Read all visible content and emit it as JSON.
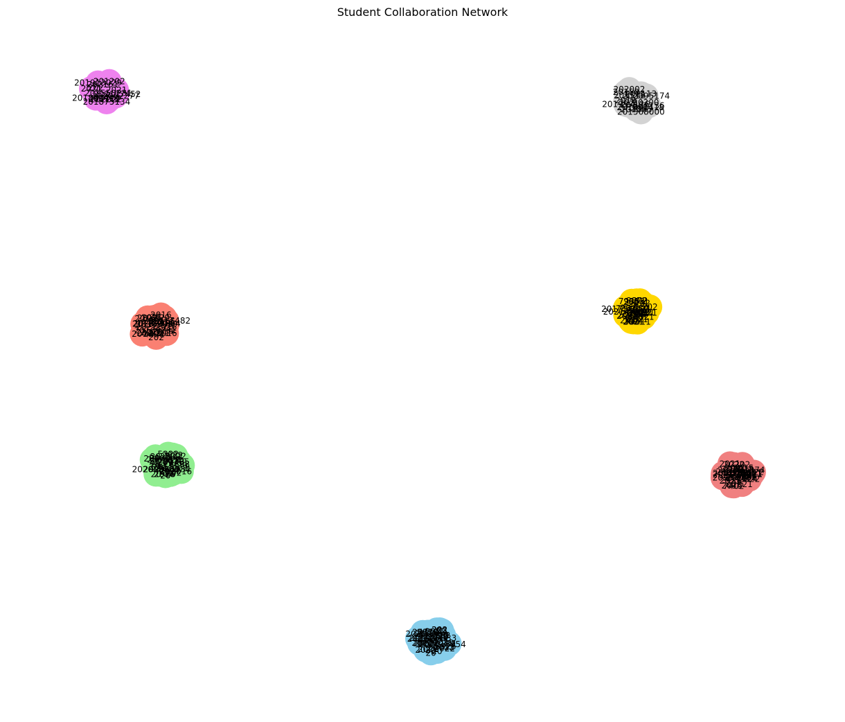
{
  "title": "Student Collaboration Network",
  "clusters": [
    {
      "id": "violet",
      "color": "#ee82ee",
      "nodes": [
        "201875134",
        "201913029",
        "202062277",
        "201772",
        "202161",
        "202177452",
        "201202",
        "2021",
        "2021",
        "202222",
        "202",
        "201550231",
        "202",
        "201850713"
      ]
    },
    {
      "id": "lightgray",
      "color": "#d3d3d3",
      "nodes": [
        "202002",
        "202095174",
        "201865",
        "202",
        "201",
        "202136",
        "201957126",
        "2019",
        "20200",
        "202113",
        "205",
        "201516",
        "20150",
        "201568000",
        "201802418"
      ]
    },
    {
      "id": "salmon",
      "color": "#fa8072",
      "nodes": [
        "202117482",
        "2021",
        "2021",
        "2021",
        "20165",
        "2016",
        "2019",
        "4422",
        "2019",
        "2016",
        "2016",
        "2017",
        "20169701",
        "2016",
        "2016",
        "20161",
        "2016",
        "2016",
        "202",
        "20",
        "202",
        "202",
        "20",
        "2016803",
        "202229604"
      ]
    },
    {
      "id": "gold",
      "color": "#ffd700",
      "nodes": [
        "201754057",
        "2019",
        "2019",
        "202",
        "7837",
        "2021",
        "2021",
        "2021",
        "2021",
        "202",
        "20",
        "202",
        "8872",
        "2021",
        "2021",
        "2021",
        "2021",
        "202",
        "202",
        "75411",
        "2021",
        "2021",
        "2021",
        "2021",
        "202",
        "202",
        "202",
        "2021",
        "202",
        "79353",
        "202147921"
      ]
    },
    {
      "id": "lightgreen",
      "color": "#90ee90",
      "nodes": [
        "202009509",
        "202",
        "202",
        "20491",
        "2022",
        "2022",
        "2022",
        "20",
        "20",
        "20",
        "20",
        "6698",
        "2016",
        "2016",
        "20",
        "20",
        "20",
        "20",
        "20",
        "20",
        "5322",
        "2017",
        "2017",
        "20",
        "20",
        "20",
        "20",
        "20",
        "20",
        "201395",
        "2018",
        "2018",
        "20",
        "20",
        "20",
        "20",
        "20",
        "202",
        "202068134"
      ]
    },
    {
      "id": "lightcoral",
      "color": "#f08080",
      "nodes": [
        "202181",
        "2021",
        "2022",
        "2023",
        "2021",
        "2024",
        "2021",
        "2022",
        "2022",
        "4699",
        "2021",
        "2021",
        "2020",
        "2020",
        "2020",
        "202",
        "202",
        "0264",
        "2015",
        "2015",
        "2015",
        "2021",
        "2021",
        "2021",
        "2021",
        "7402",
        "2021",
        "2021",
        "2021",
        "2021",
        "2021",
        "202",
        "2021",
        "5461",
        "202051974"
      ]
    },
    {
      "id": "skyblue",
      "color": "#87ceeb",
      "nodes": [
        "202018954",
        "2022",
        "2022",
        "2022",
        "2022",
        "2022",
        "2022",
        "20",
        "20",
        "20",
        "2017",
        "2017",
        "20200088",
        "2017",
        "201",
        "20",
        "20",
        "20",
        "2020",
        "20",
        "5714",
        "2022",
        "2022",
        "2022",
        "2022",
        "2022",
        "20",
        "20",
        "2022",
        "5826",
        "2022",
        "202",
        "202",
        "2019",
        "2019",
        "5784",
        "201907633"
      ]
    }
  ]
}
